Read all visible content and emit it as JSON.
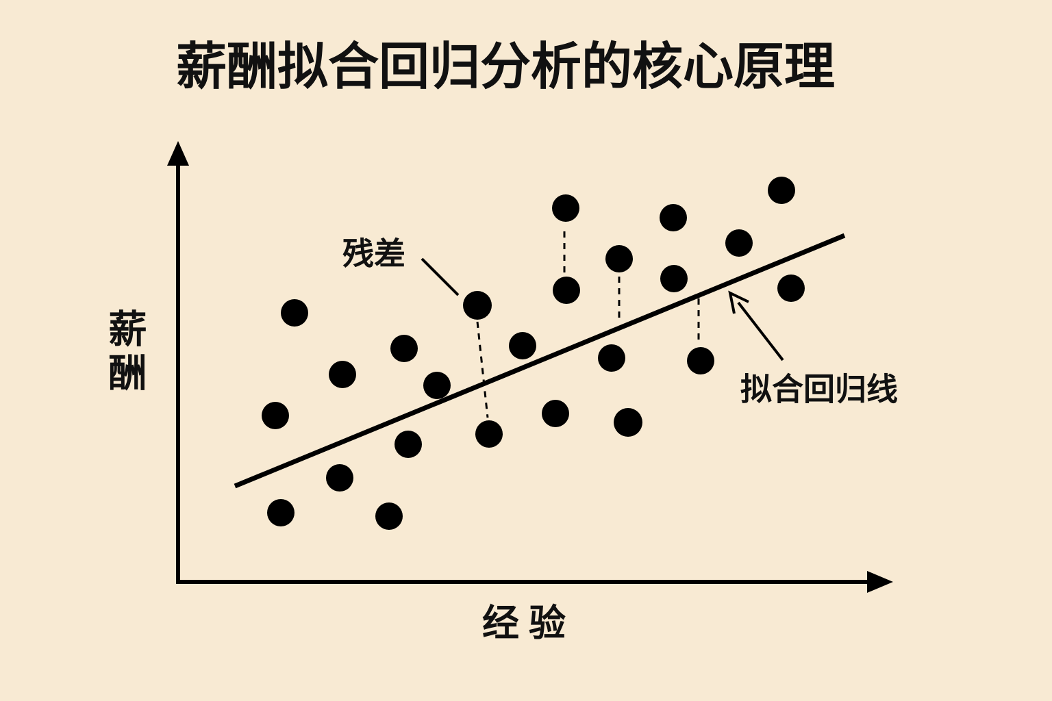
{
  "title": "薪酬拟合回归分析的核心原理",
  "y_axis_label": "薪酬",
  "x_axis_label": "经验",
  "residual_label": "残差",
  "line_label": "拟合回归线"
}
